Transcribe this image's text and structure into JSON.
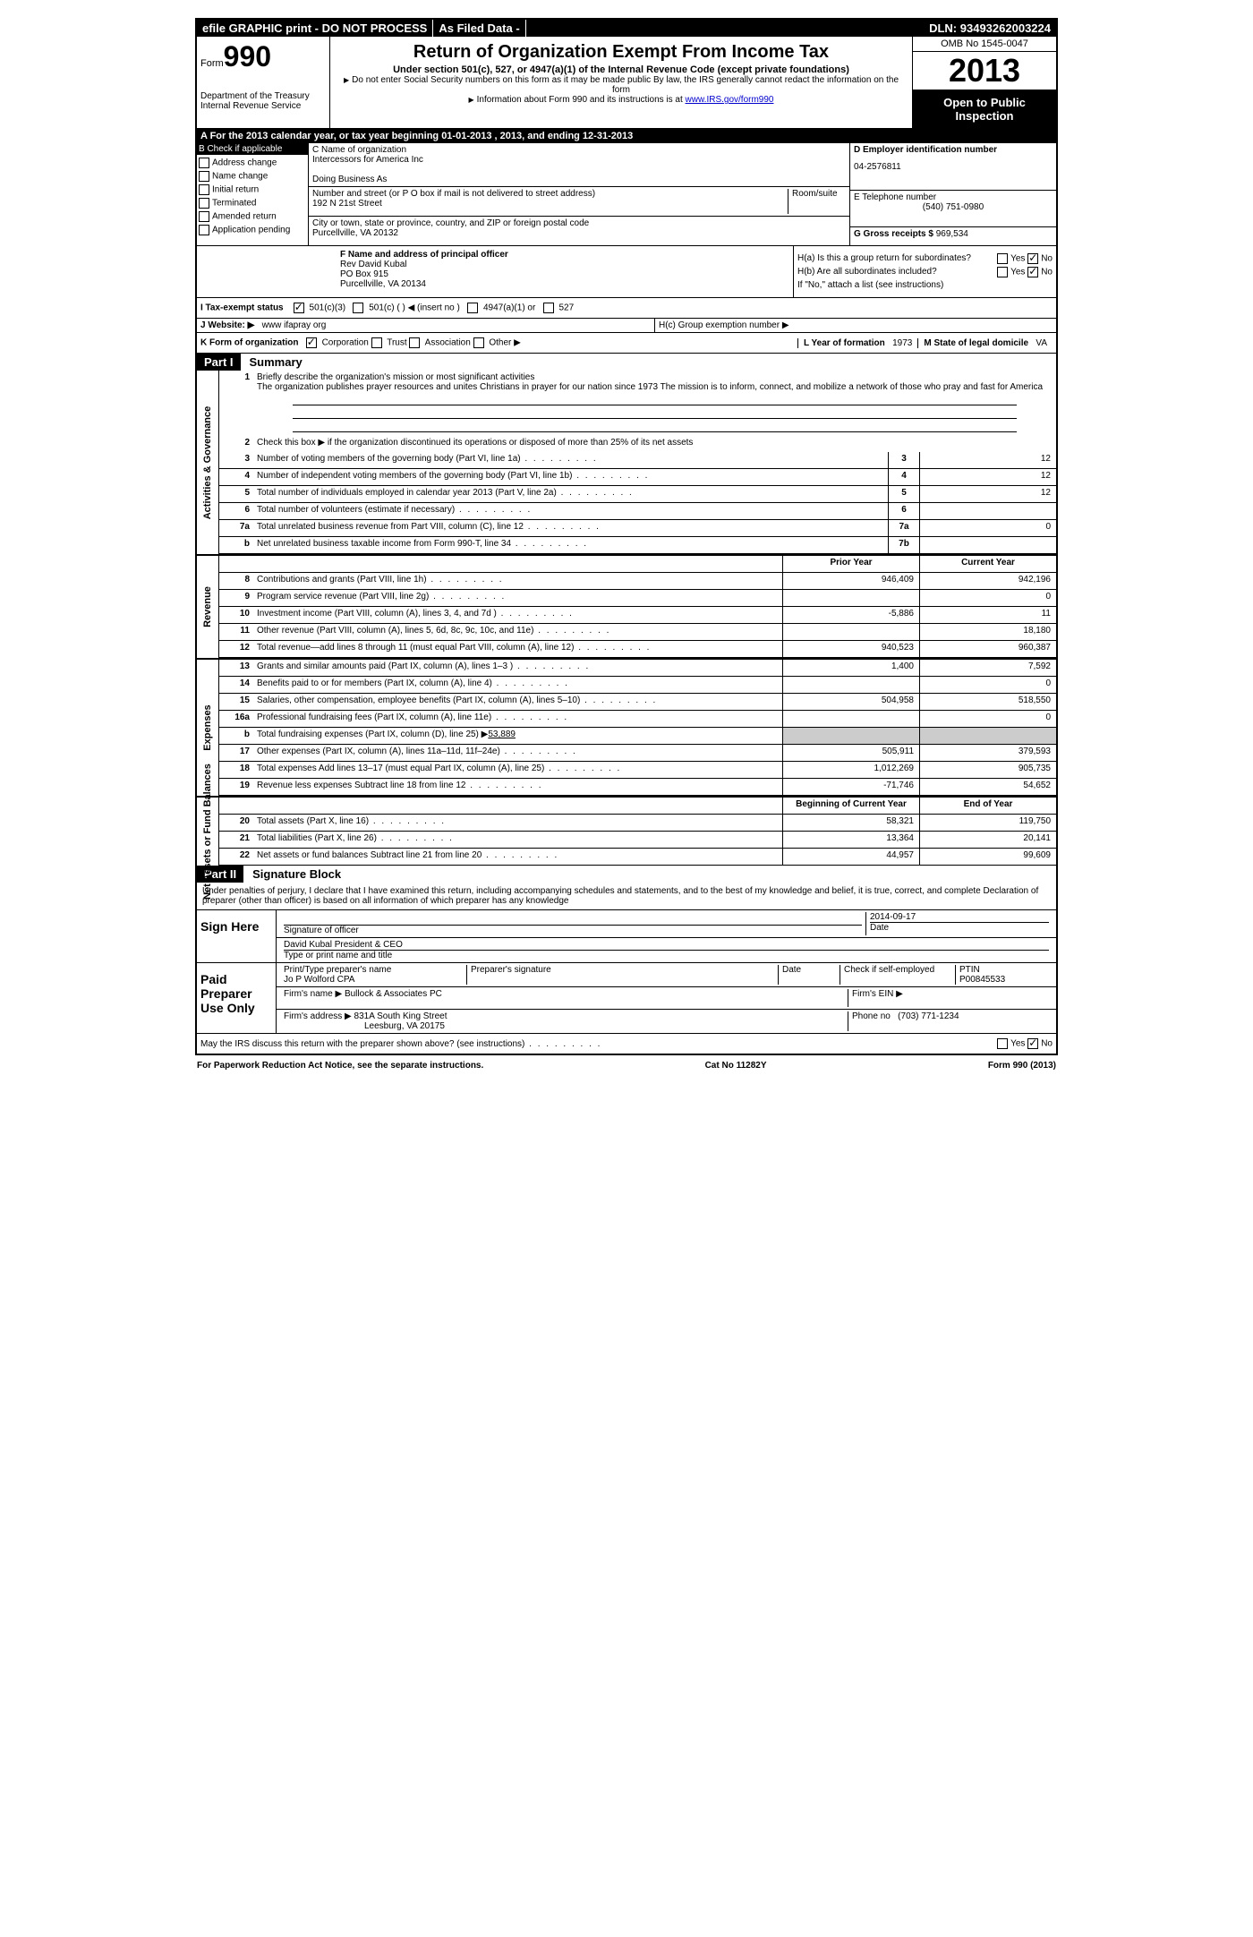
{
  "topbar": {
    "efile": "efile GRAPHIC print - DO NOT PROCESS",
    "filed": "As Filed Data -",
    "dln_label": "DLN:",
    "dln": "93493262003224"
  },
  "header": {
    "form_prefix": "Form",
    "form_num": "990",
    "dept1": "Department of the Treasury",
    "dept2": "Internal Revenue Service",
    "title": "Return of Organization Exempt From Income Tax",
    "subtitle": "Under section 501(c), 527, or 4947(a)(1) of the Internal Revenue Code (except private foundations)",
    "note1": "Do not enter Social Security numbers on this form as it may be made public  By law, the IRS generally cannot redact the information on the form",
    "note2": "Information about Form 990 and its instructions is at ",
    "link": "www.IRS.gov/form990",
    "omb": "OMB No  1545-0047",
    "year": "2013",
    "open": "Open to Public Inspection"
  },
  "lineA": "A  For the 2013 calendar year, or tax year beginning 01-01-2013     , 2013, and ending 12-31-2013",
  "colB": {
    "hdr": "B  Check if applicable",
    "items": [
      "Address change",
      "Name change",
      "Initial return",
      "Terminated",
      "Amended return",
      "Application pending"
    ]
  },
  "colC": {
    "name_lbl": "C Name of organization",
    "name": "Intercessors for America Inc",
    "dba_lbl": "Doing Business As",
    "addr_lbl": "Number and street (or P O  box if mail is not delivered to street address)",
    "room_lbl": "Room/suite",
    "addr": "192 N 21st Street",
    "city_lbl": "City or town, state or province, country, and ZIP or foreign postal code",
    "city": "Purcellville, VA  20132"
  },
  "colD": {
    "ein_lbl": "D Employer identification number",
    "ein": "04-2576811",
    "tel_lbl": "E Telephone number",
    "tel": "(540) 751-0980",
    "gross_lbl": "G Gross receipts $",
    "gross": "969,534"
  },
  "officer": {
    "lbl": "F  Name and address of principal officer",
    "name": "Rev David Kubal",
    "addr1": "PO Box 915",
    "addr2": "Purcellville, VA  20134"
  },
  "colH": {
    "ha": "H(a)  Is this a group return for subordinates?",
    "hb": "H(b)  Are all subordinates included?",
    "hb2": "If \"No,\" attach a list  (see instructions)",
    "hc": "H(c)   Group exemption number ▶",
    "yes": "Yes",
    "no": "No"
  },
  "lineI": {
    "lbl": "I   Tax-exempt status",
    "o1": "501(c)(3)",
    "o2": "501(c) (   ) ◀ (insert no )",
    "o3": "4947(a)(1) or",
    "o4": "527"
  },
  "lineJ": {
    "lbl": "J   Website: ▶",
    "val": "www ifapray org"
  },
  "lineK": {
    "lbl": "K Form of organization",
    "o1": "Corporation",
    "o2": "Trust",
    "o3": "Association",
    "o4": "Other ▶",
    "l_lbl": "L Year of formation",
    "l_val": "1973",
    "m_lbl": "M State of legal domicile",
    "m_val": "VA"
  },
  "part1": {
    "num": "Part I",
    "title": "Summary"
  },
  "gov": {
    "vtab": "Activities & Governance",
    "l1_lbl": "Briefly describe the organization's mission or most significant activities",
    "l1_txt": "The organization publishes prayer resources and unites Christians in prayer for our nation since 1973  The mission is to inform, connect, and mobilize a network of those who pray and fast for America",
    "l2": "Check this box ▶    if the organization discontinued its operations or disposed of more than 25% of its net assets",
    "rows": [
      {
        "n": "3",
        "d": "Number of voting members of the governing body (Part VI, line 1a)",
        "b": "3",
        "v": "12"
      },
      {
        "n": "4",
        "d": "Number of independent voting members of the governing body (Part VI, line 1b)",
        "b": "4",
        "v": "12"
      },
      {
        "n": "5",
        "d": "Total number of individuals employed in calendar year 2013 (Part V, line 2a)",
        "b": "5",
        "v": "12"
      },
      {
        "n": "6",
        "d": "Total number of volunteers (estimate if necessary)",
        "b": "6",
        "v": ""
      },
      {
        "n": "7a",
        "d": "Total unrelated business revenue from Part VIII, column (C), line 12",
        "b": "7a",
        "v": "0"
      },
      {
        "n": "b",
        "d": "Net unrelated business taxable income from Form 990-T, line 34",
        "b": "7b",
        "v": ""
      }
    ]
  },
  "rev": {
    "vtab": "Revenue",
    "hdr_prior": "Prior Year",
    "hdr_curr": "Current Year",
    "rows": [
      {
        "n": "8",
        "d": "Contributions and grants (Part VIII, line 1h)",
        "p": "946,409",
        "c": "942,196"
      },
      {
        "n": "9",
        "d": "Program service revenue (Part VIII, line 2g)",
        "p": "",
        "c": "0"
      },
      {
        "n": "10",
        "d": "Investment income (Part VIII, column (A), lines 3, 4, and 7d )",
        "p": "-5,886",
        "c": "11"
      },
      {
        "n": "11",
        "d": "Other revenue (Part VIII, column (A), lines 5, 6d, 8c, 9c, 10c, and 11e)",
        "p": "",
        "c": "18,180"
      },
      {
        "n": "12",
        "d": "Total revenue—add lines 8 through 11 (must equal Part VIII, column (A), line 12)",
        "p": "940,523",
        "c": "960,387"
      }
    ]
  },
  "exp": {
    "vtab": "Expenses",
    "rows": [
      {
        "n": "13",
        "d": "Grants and similar amounts paid (Part IX, column (A), lines 1–3 )",
        "p": "1,400",
        "c": "7,592"
      },
      {
        "n": "14",
        "d": "Benefits paid to or for members (Part IX, column (A), line 4)",
        "p": "",
        "c": "0"
      },
      {
        "n": "15",
        "d": "Salaries, other compensation, employee benefits (Part IX, column (A), lines 5–10)",
        "p": "504,958",
        "c": "518,550"
      },
      {
        "n": "16a",
        "d": "Professional fundraising fees (Part IX, column (A), line 11e)",
        "p": "",
        "c": "0"
      },
      {
        "n": "b",
        "d": "Total fundraising expenses (Part IX, column (D), line 25) ▶",
        "fund": "53,889",
        "p": "grey",
        "c": "grey"
      },
      {
        "n": "17",
        "d": "Other expenses (Part IX, column (A), lines 11a–11d, 11f–24e)",
        "p": "505,911",
        "c": "379,593"
      },
      {
        "n": "18",
        "d": "Total expenses  Add lines 13–17 (must equal Part IX, column (A), line 25)",
        "p": "1,012,269",
        "c": "905,735"
      },
      {
        "n": "19",
        "d": "Revenue less expenses  Subtract line 18 from line 12",
        "p": "-71,746",
        "c": "54,652"
      }
    ]
  },
  "net": {
    "vtab": "Net Assets or Fund Balances",
    "hdr_beg": "Beginning of Current Year",
    "hdr_end": "End of Year",
    "rows": [
      {
        "n": "20",
        "d": "Total assets (Part X, line 16)",
        "p": "58,321",
        "c": "119,750"
      },
      {
        "n": "21",
        "d": "Total liabilities (Part X, line 26)",
        "p": "13,364",
        "c": "20,141"
      },
      {
        "n": "22",
        "d": "Net assets or fund balances  Subtract line 21 from line 20",
        "p": "44,957",
        "c": "99,609"
      }
    ]
  },
  "part2": {
    "num": "Part II",
    "title": "Signature Block"
  },
  "sig": {
    "decl": "Under penalties of perjury, I declare that I have examined this return, including accompanying schedules and statements, and to the best of my knowledge and belief, it is true, correct, and complete  Declaration of preparer (other than officer) is based on all information of which preparer has any knowledge",
    "sign_here": "Sign Here",
    "sig_officer": "Signature of officer",
    "date_lbl": "Date",
    "date": "2014-09-17",
    "name": "David Kubal President & CEO",
    "type_lbl": "Type or print name and title",
    "paid": "Paid Preparer Use Only",
    "prep_name_lbl": "Print/Type preparer's name",
    "prep_name": "Jo P Wolford CPA",
    "prep_sig_lbl": "Preparer's signature",
    "check_lbl": "Check     if self-employed",
    "ptin_lbl": "PTIN",
    "ptin": "P00845533",
    "firm_name_lbl": "Firm's name    ▶",
    "firm_name": "Bullock & Associates PC",
    "firm_ein_lbl": "Firm's EIN ▶",
    "firm_addr_lbl": "Firm's address ▶",
    "firm_addr1": "831A South King Street",
    "firm_addr2": "Leesburg, VA  20175",
    "phone_lbl": "Phone no",
    "phone": "(703) 771-1234",
    "discuss": "May the IRS discuss this return with the preparer shown above? (see instructions)"
  },
  "footer": {
    "left": "For Paperwork Reduction Act Notice, see the separate instructions.",
    "mid": "Cat No  11282Y",
    "right": "Form 990 (2013)"
  }
}
